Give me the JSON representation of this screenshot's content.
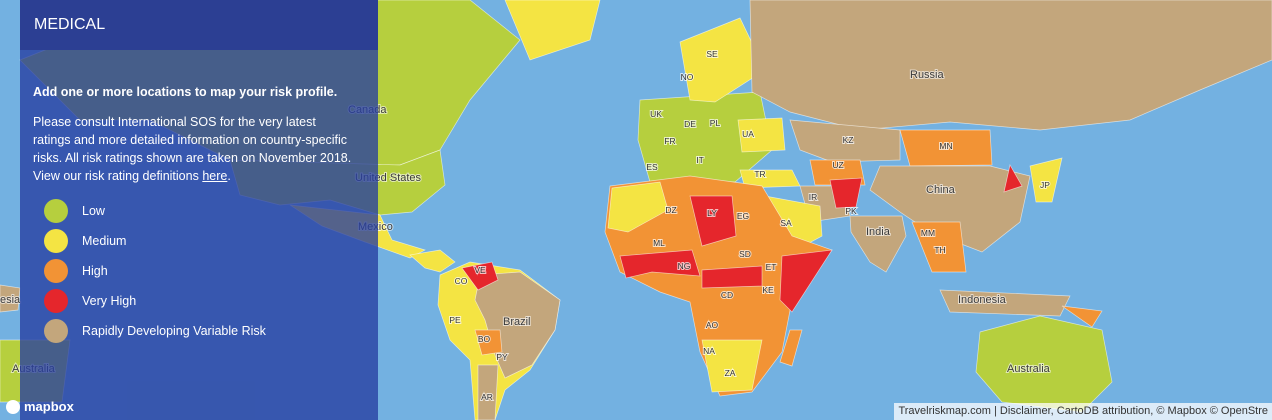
{
  "panel": {
    "title": "MEDICAL",
    "heading": "Add one or more locations to map your risk profile.",
    "body": "Please consult International SOS for the very latest ratings and more detailed information on country-specific risks. All risk ratings shown are taken on November 2018. View our risk rating definitions",
    "link": "here",
    "link_suffix": "."
  },
  "legend": [
    {
      "label": "Low",
      "color": "#b6cf3e"
    },
    {
      "label": "Medium",
      "color": "#f4e443"
    },
    {
      "label": "High",
      "color": "#f29335"
    },
    {
      "label": "Very High",
      "color": "#e5262c"
    },
    {
      "label": "Rapidly Developing Variable Risk",
      "color": "#c3a67c"
    }
  ],
  "map_labels": [
    "Canada",
    "United States",
    "Mexico",
    "Brazil",
    "Russia",
    "China",
    "India",
    "Indonesia",
    "Australia",
    "Australia",
    "esia",
    "SE",
    "NO",
    "UK",
    "DE",
    "PL",
    "UA",
    "FR",
    "IT",
    "ES",
    "TR",
    "KZ",
    "MN",
    "UZ",
    "IR",
    "PK",
    "JP",
    "DZ",
    "LY",
    "EG",
    "SA",
    "ML",
    "NG",
    "SD",
    "ET",
    "KE",
    "CD",
    "AO",
    "NA",
    "ZA",
    "MM",
    "TH",
    "VE",
    "CO",
    "PE",
    "BO",
    "PY",
    "AR"
  ],
  "attribution": "Travelriskmap.com | Disclaimer, CartoDB attribution, © Mapbox © OpenStre",
  "logo": "mapbox"
}
